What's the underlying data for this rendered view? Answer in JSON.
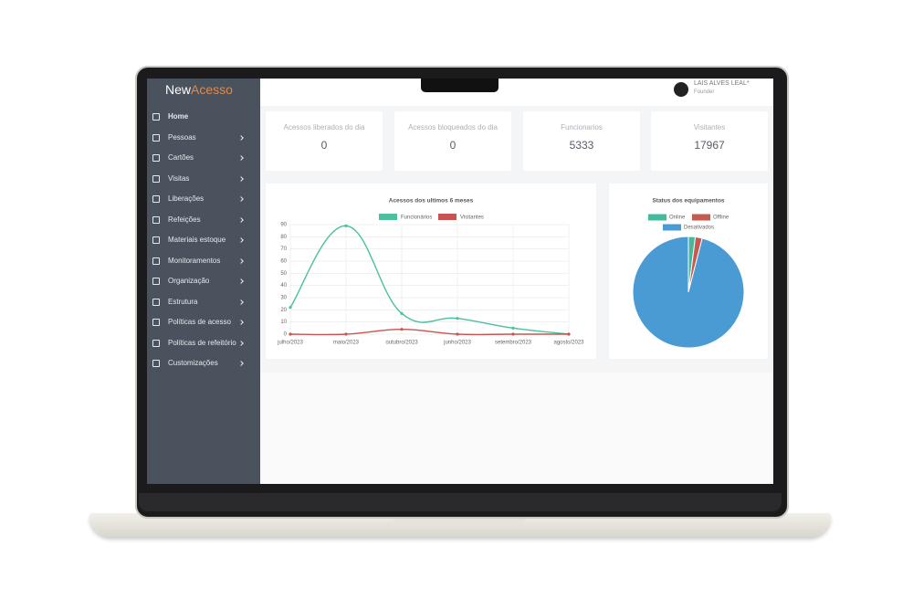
{
  "brand": {
    "prefix": "New",
    "suffix": "Acesso"
  },
  "user": {
    "name": "LAIS ALVES LEAL*",
    "role": "Founder"
  },
  "menu": [
    "Home",
    "Pessoas",
    "Cartões",
    "Visitas",
    "Liberações",
    "Refeições",
    "Materiais estoque",
    "Monitoramentos",
    "Organização",
    "Estrutura",
    "Políticas de acesso",
    "Políticas de refeitório",
    "Customizações"
  ],
  "cards": [
    {
      "label": "Acessos liberados do dia",
      "value": 0
    },
    {
      "label": "Acessos bloqueados do dia",
      "value": 0
    },
    {
      "label": "Funcionarios",
      "value": 5333
    },
    {
      "label": "Visitantes",
      "value": 17967
    }
  ],
  "chart_data": [
    {
      "type": "line",
      "title": "Acessos dos ultimos 6 meses",
      "categories": [
        "julho/2023",
        "maio/2023",
        "outubro/2023",
        "junho/2023",
        "setembro/2023",
        "agosto/2023"
      ],
      "series": [
        {
          "name": "Funcionários",
          "color": "#4bbf9f",
          "values": [
            22,
            89,
            17,
            13,
            5,
            0
          ]
        },
        {
          "name": "Visitantes",
          "color": "#c9544f",
          "values": [
            0,
            0,
            4,
            0,
            0,
            0
          ]
        }
      ],
      "ylim": [
        0,
        90
      ],
      "yticks": [
        0,
        10,
        20,
        30,
        40,
        50,
        60,
        70,
        80,
        90
      ],
      "grid": true
    },
    {
      "type": "pie",
      "title": "Status dos equipamentos",
      "categories": [
        "Online",
        "Offline",
        "Desativados"
      ],
      "colors": [
        "#45b99c",
        "#c55a52",
        "#4a9bd4"
      ],
      "values": [
        2,
        2,
        96
      ]
    }
  ]
}
